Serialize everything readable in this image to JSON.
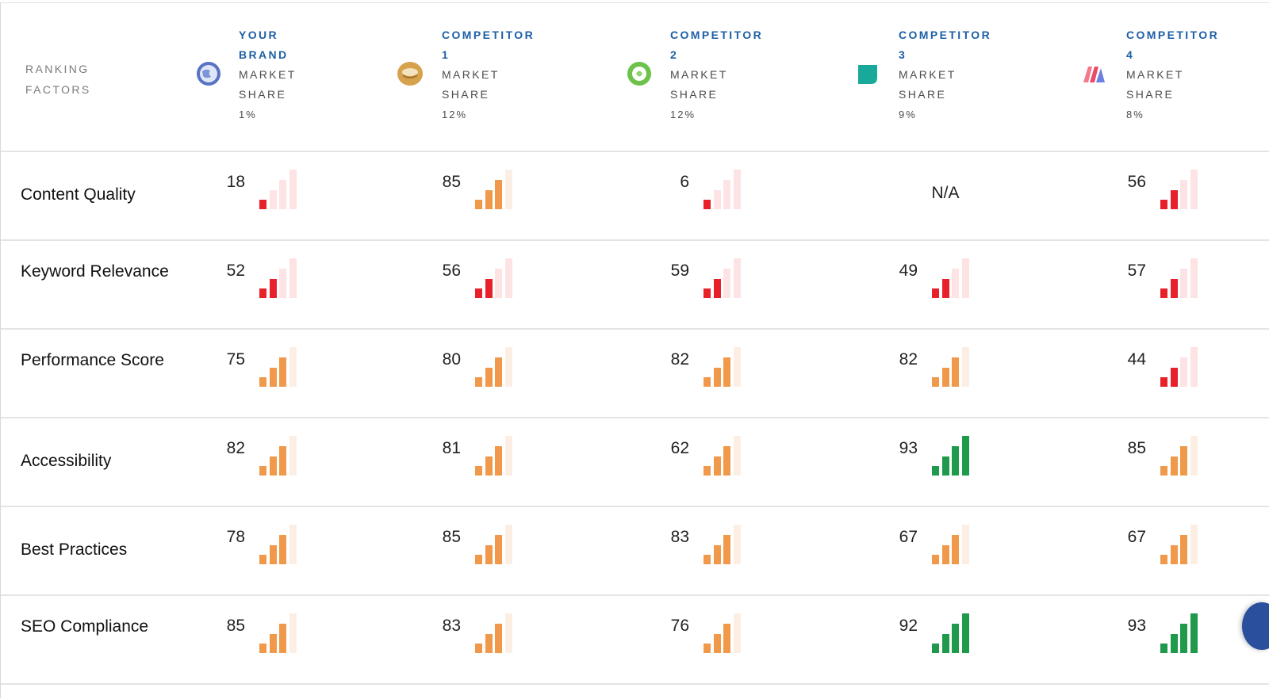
{
  "header": {
    "ranking_factors_line1": "RANKING",
    "ranking_factors_line2": "FACTORS",
    "brands": [
      {
        "name_line1": "YOUR",
        "name_line2": "BRAND",
        "ms_line1": "MARKET",
        "ms_line2": "SHARE",
        "ms_value": "1%",
        "logo": "globe-logo-icon"
      },
      {
        "name_line1": "COMPETITOR",
        "name_line2": "1",
        "ms_line1": "MARKET",
        "ms_line2": "SHARE",
        "ms_value": "12%",
        "logo": "bowl-logo-icon"
      },
      {
        "name_line1": "COMPETITOR",
        "name_line2": "2",
        "ms_line1": "MARKET",
        "ms_line2": "SHARE",
        "ms_value": "12%",
        "logo": "green-circle-logo-icon"
      },
      {
        "name_line1": "COMPETITOR",
        "name_line2": "3",
        "ms_line1": "MARKET",
        "ms_line2": "SHARE",
        "ms_value": "9%",
        "logo": "teal-leaf-logo-icon"
      },
      {
        "name_line1": "COMPETITOR",
        "name_line2": "4",
        "ms_line1": "MARKET",
        "ms_line2": "SHARE",
        "ms_value": "8%",
        "logo": "m-letter-logo-icon"
      }
    ]
  },
  "rows": [
    {
      "label": "Content Quality",
      "scores": [
        "18",
        "85",
        "6",
        "N/A",
        "56"
      ]
    },
    {
      "label": "Keyword Relevance",
      "scores": [
        "52",
        "56",
        "59",
        "49",
        "57"
      ]
    },
    {
      "label": "Performance Score",
      "scores": [
        "75",
        "80",
        "82",
        "82",
        "44"
      ]
    },
    {
      "label": "Accessibility",
      "scores": [
        "82",
        "81",
        "62",
        "93",
        "85"
      ]
    },
    {
      "label": "Best Practices",
      "scores": [
        "78",
        "85",
        "83",
        "67",
        "67"
      ]
    },
    {
      "label": "SEO Compliance",
      "scores": [
        "85",
        "83",
        "76",
        "92",
        "93"
      ]
    }
  ],
  "signal_levels": {
    "content_quality": [
      1,
      3,
      1,
      0,
      2
    ],
    "keyword_relevance": [
      2,
      2,
      2,
      2,
      2
    ],
    "performance_score": [
      3,
      3,
      3,
      3,
      2
    ],
    "accessibility": [
      3,
      3,
      3,
      4,
      3
    ],
    "best_practices": [
      3,
      3,
      3,
      3,
      3
    ],
    "seo_compliance": [
      3,
      3,
      3,
      4,
      4
    ]
  },
  "colors": {
    "low": "#e8202a",
    "medium": "#f0994a",
    "high": "#1f9a4a",
    "inactive_low": "#fde3e4",
    "inactive_medium": "#fdeee4",
    "inactive_high": "#fdeee4",
    "brand_text": "#1d5fa6"
  }
}
